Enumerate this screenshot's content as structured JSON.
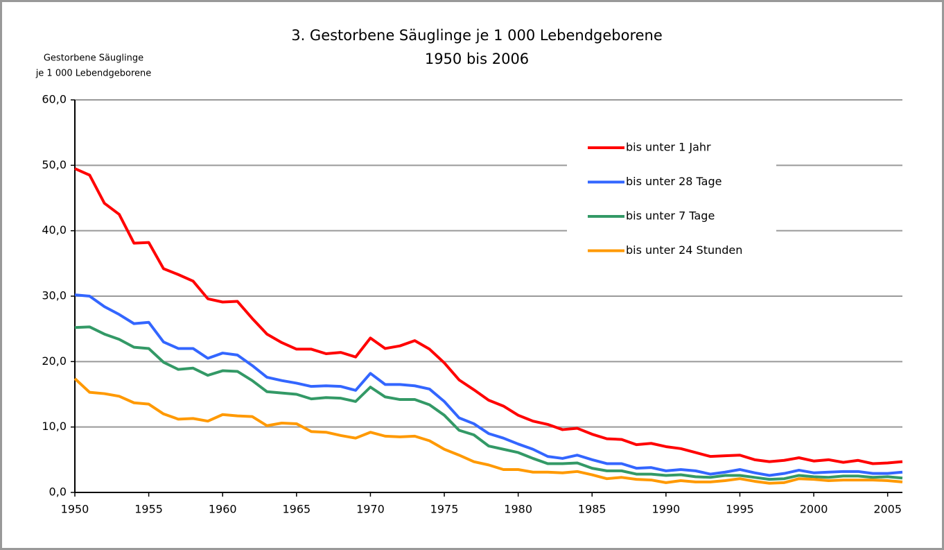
{
  "chart_data": {
    "type": "line",
    "title": "3. Gestorbene Säuglinge je 1 000 Lebendgeborene",
    "subtitle": "1950 bis 2006",
    "y_label": [
      "Gestorbene Säuglinge",
      "je 1 000 Lebendgeborene"
    ],
    "x": [
      1950,
      1951,
      1952,
      1953,
      1954,
      1955,
      1956,
      1957,
      1958,
      1959,
      1960,
      1961,
      1962,
      1963,
      1964,
      1965,
      1966,
      1967,
      1968,
      1969,
      1970,
      1971,
      1972,
      1973,
      1974,
      1975,
      1976,
      1977,
      1978,
      1979,
      1980,
      1981,
      1982,
      1983,
      1984,
      1985,
      1986,
      1987,
      1988,
      1989,
      1990,
      1991,
      1992,
      1993,
      1994,
      1995,
      1996,
      1997,
      1998,
      1999,
      2000,
      2001,
      2002,
      2003,
      2004,
      2005,
      2006
    ],
    "xlim": [
      1950,
      2006
    ],
    "xticks": [
      1950,
      1955,
      1960,
      1965,
      1970,
      1975,
      1980,
      1985,
      1990,
      1995,
      2000,
      2005
    ],
    "ylim": [
      0,
      60
    ],
    "yticks": [
      {
        "value": 0,
        "label": "0,0"
      },
      {
        "value": 10,
        "label": "10,0"
      },
      {
        "value": 20,
        "label": "20,0"
      },
      {
        "value": 30,
        "label": "30,0"
      },
      {
        "value": 40,
        "label": "40,0"
      },
      {
        "value": 50,
        "label": "50,0"
      },
      {
        "value": 60,
        "label": "60,0"
      }
    ],
    "grid": true,
    "legend": "upper right",
    "series": [
      {
        "name": "bis unter 1 Jahr",
        "color": "#ff0000",
        "values": [
          49.5,
          48.5,
          44.2,
          42.5,
          38.1,
          38.2,
          34.2,
          33.3,
          32.3,
          29.6,
          29.1,
          29.2,
          26.6,
          24.2,
          22.9,
          21.9,
          21.9,
          21.2,
          21.4,
          20.7,
          23.6,
          22.0,
          22.4,
          23.2,
          21.9,
          19.8,
          17.2,
          15.7,
          14.1,
          13.2,
          11.8,
          10.9,
          10.4,
          9.6,
          9.8,
          8.9,
          8.2,
          8.1,
          7.3,
          7.5,
          7.0,
          6.7,
          6.1,
          5.5,
          5.6,
          5.7,
          5.0,
          4.7,
          4.9,
          5.3,
          4.8,
          5.0,
          4.6,
          4.9,
          4.4,
          4.5,
          4.7
        ]
      },
      {
        "name": "bis unter 28 Tage",
        "color": "#3366ff",
        "values": [
          30.2,
          30.0,
          28.4,
          27.2,
          25.8,
          26.0,
          23.0,
          22.0,
          22.0,
          20.5,
          21.3,
          21.0,
          19.4,
          17.6,
          17.1,
          16.7,
          16.2,
          16.3,
          16.2,
          15.6,
          18.2,
          16.5,
          16.5,
          16.3,
          15.8,
          13.9,
          11.4,
          10.5,
          9.0,
          8.3,
          7.4,
          6.6,
          5.5,
          5.2,
          5.7,
          5.0,
          4.4,
          4.4,
          3.7,
          3.8,
          3.3,
          3.5,
          3.3,
          2.8,
          3.1,
          3.5,
          3.0,
          2.6,
          2.9,
          3.4,
          3.0,
          3.1,
          3.2,
          3.2,
          2.9,
          2.9,
          3.1
        ]
      },
      {
        "name": "bis unter 7 Tage",
        "color": "#339966",
        "values": [
          25.2,
          25.3,
          24.2,
          23.4,
          22.2,
          22.0,
          19.9,
          18.8,
          19.0,
          17.9,
          18.6,
          18.5,
          17.1,
          15.4,
          15.2,
          15.0,
          14.3,
          14.5,
          14.4,
          13.9,
          16.1,
          14.6,
          14.2,
          14.2,
          13.4,
          11.8,
          9.5,
          8.8,
          7.1,
          6.6,
          6.1,
          5.2,
          4.4,
          4.4,
          4.5,
          3.7,
          3.3,
          3.3,
          2.8,
          2.8,
          2.6,
          2.7,
          2.4,
          2.3,
          2.6,
          2.6,
          2.3,
          2.0,
          2.1,
          2.6,
          2.4,
          2.3,
          2.5,
          2.5,
          2.3,
          2.4,
          2.2
        ]
      },
      {
        "name": "bis unter 24 Stunden",
        "color": "#ff9900",
        "values": [
          17.4,
          15.3,
          15.1,
          14.7,
          13.7,
          13.5,
          12.0,
          11.2,
          11.3,
          10.9,
          11.9,
          11.7,
          11.6,
          10.2,
          10.6,
          10.5,
          9.3,
          9.2,
          8.7,
          8.3,
          9.2,
          8.6,
          8.5,
          8.6,
          7.9,
          6.6,
          5.7,
          4.7,
          4.2,
          3.5,
          3.5,
          3.1,
          3.1,
          3.0,
          3.2,
          2.7,
          2.1,
          2.3,
          2.0,
          1.9,
          1.5,
          1.8,
          1.6,
          1.6,
          1.8,
          2.1,
          1.7,
          1.4,
          1.5,
          2.1,
          2.0,
          1.8,
          1.9,
          1.9,
          1.9,
          1.8,
          1.6
        ]
      }
    ]
  }
}
